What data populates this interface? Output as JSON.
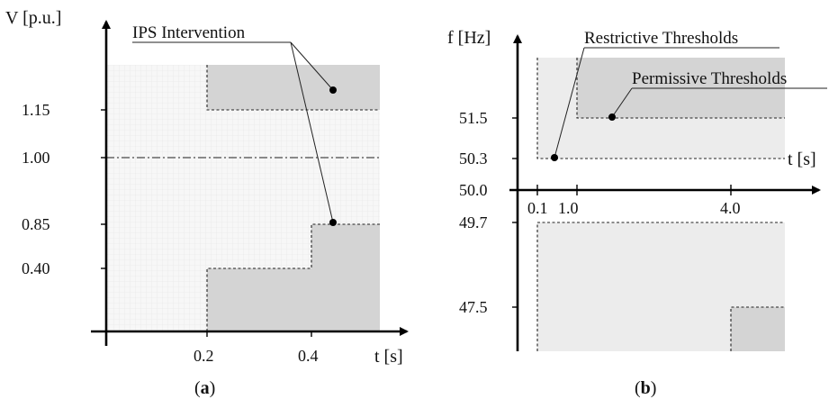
{
  "panel_a": {
    "caption_open": "(",
    "caption_letter": "a",
    "caption_close": ")",
    "y_axis_label": "V [p.u.]",
    "x_axis_label": "t [s]",
    "annotation": "IPS Intervention",
    "y_ticks": [
      "1.15",
      "1.00",
      "0.85",
      "0.40"
    ],
    "x_ticks": [
      "0.2",
      "0.4"
    ]
  },
  "panel_b": {
    "caption_open": "(",
    "caption_letter": "b",
    "caption_close": ")",
    "y_axis_label": "f [Hz]",
    "x_axis_label": "t [s]",
    "annotation_restrictive": "Restrictive Thresholds",
    "annotation_permissive": "Permissive Thresholds",
    "y_ticks": [
      "51.5",
      "50.3",
      "50.0",
      "49.7",
      "47.5"
    ],
    "x_ticks": [
      "0.1",
      "1.0",
      "4.0"
    ]
  },
  "colors": {
    "region_dark": "#d4d4d4",
    "region_light": "#ececec",
    "grid_bg": "#f6f6f6",
    "axis": "#000000"
  }
}
